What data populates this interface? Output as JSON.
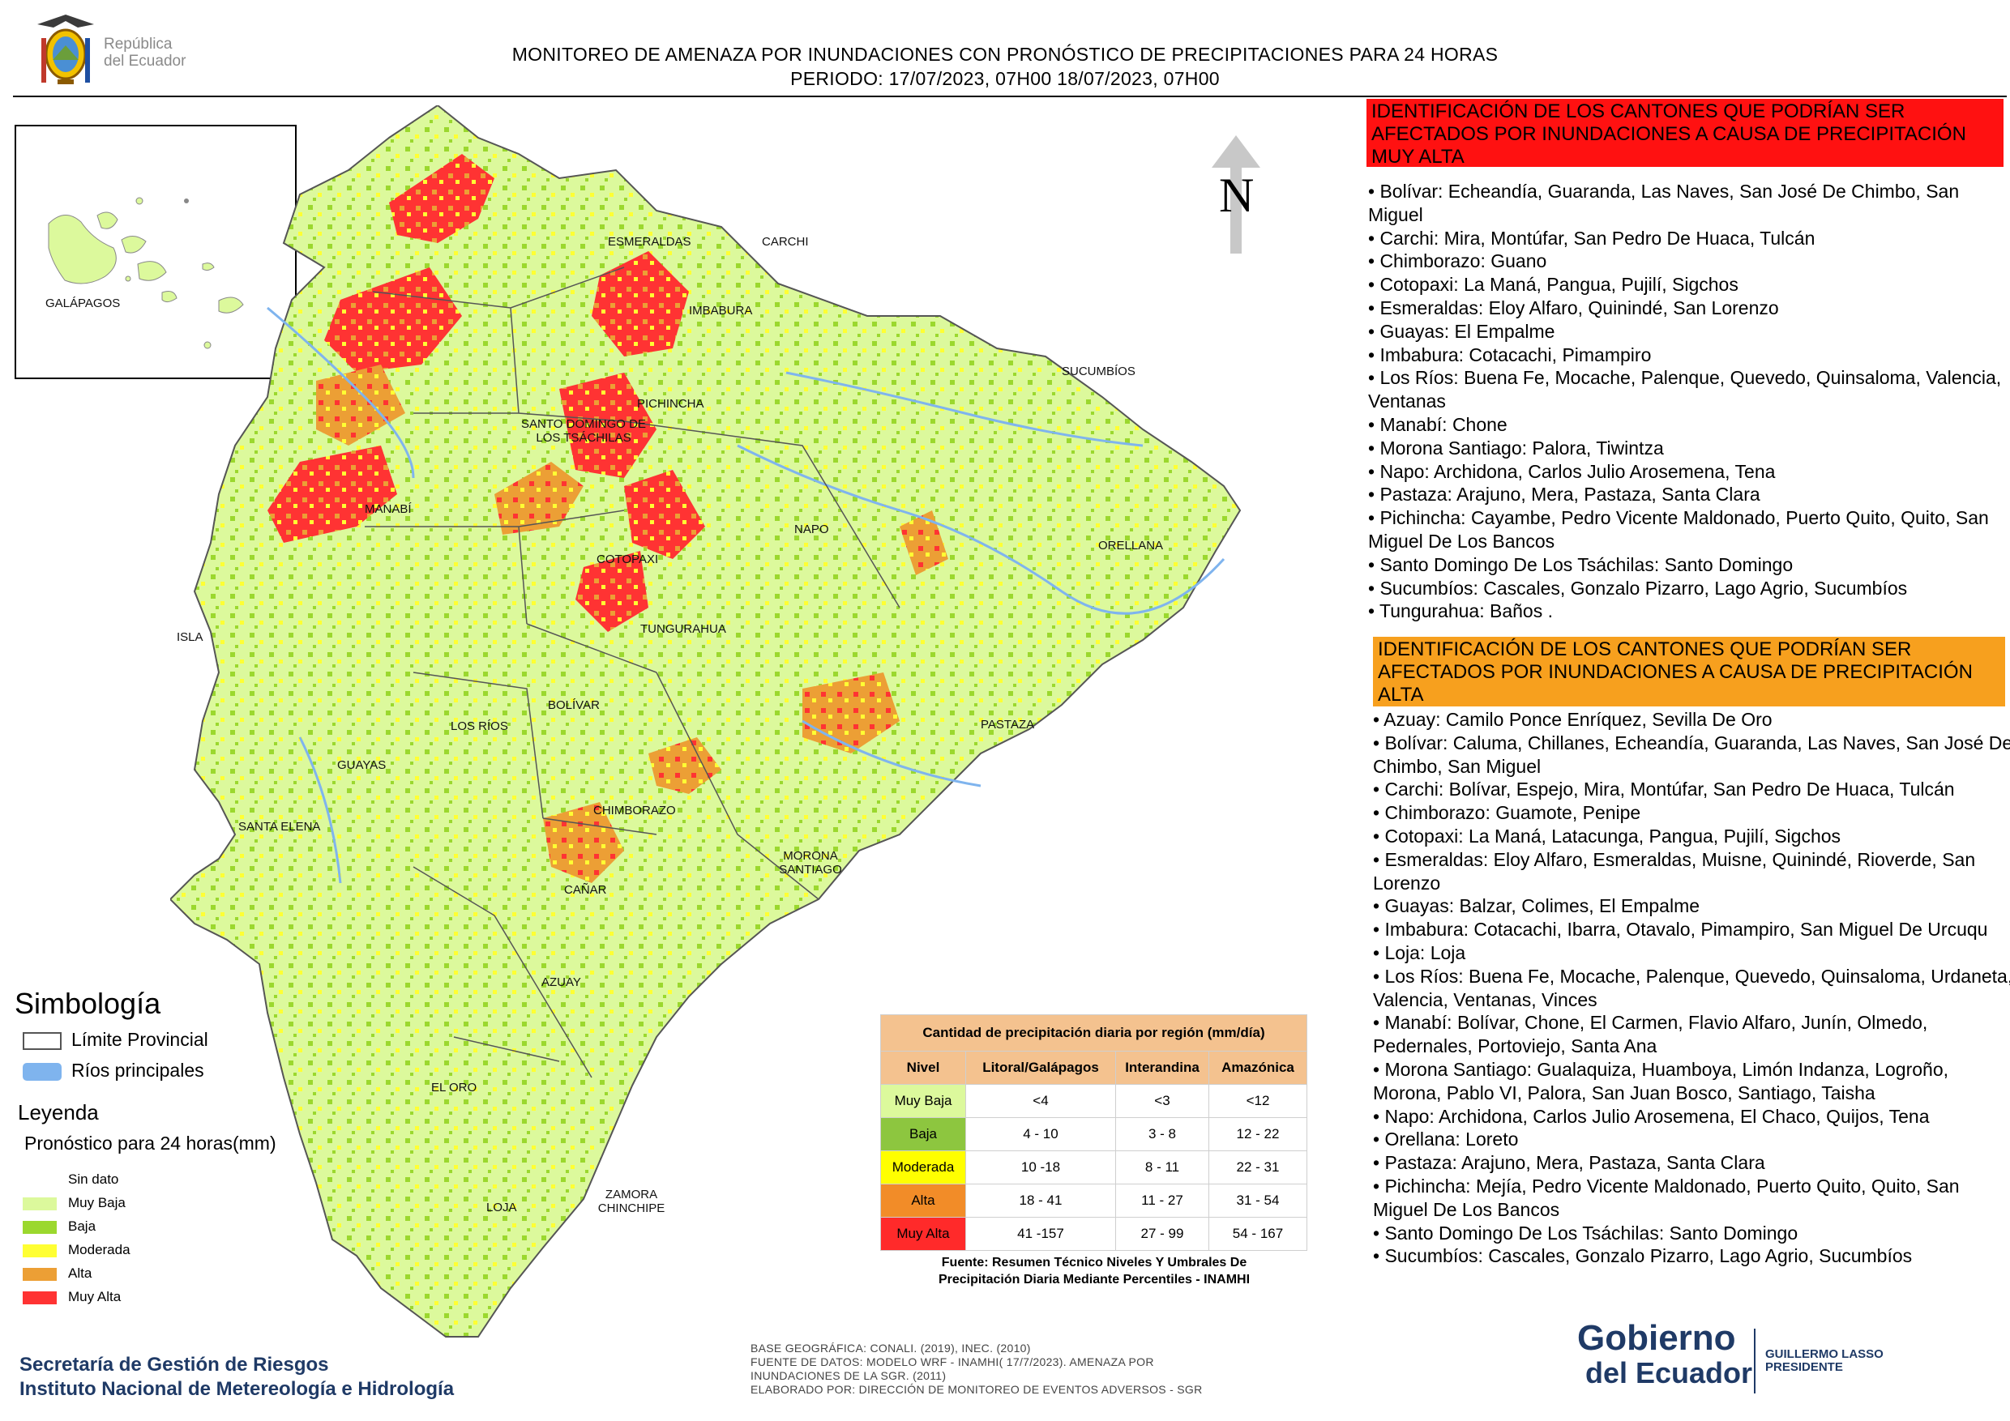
{
  "header": {
    "line1": "MONITOREO DE AMENAZA POR INUNDACIONES  CON PRONÓSTICO DE  PRECIPITACIONES PARA 24 HORAS",
    "line2": "PERIODO: 17/07/2023, 07H00 18/07/2023, 07H00",
    "logo_line1": "República",
    "logo_line2": "del Ecuador"
  },
  "map": {
    "north": "N",
    "inset_label": "GALÁPAGOS",
    "provinces": [
      "ESMERALDAS",
      "CARCHI",
      "IMBABURA",
      "SUCUMBÍOS",
      "PICHINCHA",
      "SANTO DOMINGO DE LOS TSÁCHILAS",
      "MANABÍ",
      "NAPO",
      "ORELLANA",
      "COTOPAXI",
      "TUNGURAHUA",
      "ISLA",
      "BOLÍVAR",
      "LOS RÍOS",
      "GUAYAS",
      "PASTAZA",
      "CHIMBORAZO",
      "SANTA ELENA",
      "MORONA SANTIAGO",
      "CAÑAR",
      "AZUAY",
      "EL ORO",
      "LOJA",
      "ZAMORA CHINCHIPE"
    ],
    "colors": {
      "muy_baja": "#dcf99c",
      "baja": "#9bd82e",
      "moderada": "#ffff33",
      "alta": "#ec9f35",
      "muy_alta": "#ff3333",
      "rivers": "#7fb4ee"
    }
  },
  "panel_high": {
    "title": "IDENTIFICACIÓN DE LOS CANTONES QUE PODRÍAN SER AFECTADOS POR INUNDACIONES  A CAUSA DE PRECIPITACIÓN MUY ALTA",
    "items": [
      "• Bolívar: Echeandía, Guaranda, Las Naves, San José De Chimbo, San Miguel",
      "• Carchi: Mira, Montúfar, San Pedro De Huaca, Tulcán",
      "• Chimborazo: Guano",
      "• Cotopaxi: La Maná, Pangua, Pujilí, Sigchos",
      "• Esmeraldas: Eloy Alfaro, Quinindé, San Lorenzo",
      "• Guayas: El Empalme",
      "• Imbabura: Cotacachi, Pimampiro",
      "• Los Ríos: Buena Fe, Mocache, Palenque, Quevedo, Quinsaloma, Valencia, Ventanas",
      "• Manabí: Chone",
      "• Morona Santiago: Palora, Tiwintza",
      "• Napo: Archidona, Carlos Julio Arosemena, Tena",
      "• Pastaza: Arajuno, Mera, Pastaza, Santa Clara",
      "• Pichincha: Cayambe, Pedro Vicente Maldonado, Puerto Quito, Quito, San Miguel De Los Bancos",
      "• Santo Domingo De Los Tsáchilas: Santo Domingo",
      "• Sucumbíos: Cascales, Gonzalo Pizarro, Lago Agrio, Sucumbíos",
      "• Tungurahua: Baños ."
    ]
  },
  "panel_alta": {
    "title": "IDENTIFICACIÓN DE LOS CANTONES QUE  PODRÍAN SER AFECTADOS POR INUNDACIONES  A CAUSA DE PRECIPITACIÓN ALTA",
    "items": [
      "• Azuay: Camilo Ponce Enríquez, Sevilla De Oro",
      "• Bolívar: Caluma, Chillanes, Echeandía, Guaranda, Las Naves, San José De Chimbo, San Miguel",
      "• Carchi: Bolívar, Espejo, Mira, Montúfar, San Pedro De Huaca, Tulcán",
      "• Chimborazo: Guamote, Penipe",
      "• Cotopaxi: La Maná, Latacunga, Pangua, Pujilí, Sigchos",
      "• Esmeraldas: Eloy Alfaro, Esmeraldas, Muisne, Quinindé, Rioverde, San Lorenzo",
      "• Guayas: Balzar, Colimes, El Empalme",
      "• Imbabura: Cotacachi, Ibarra, Otavalo, Pimampiro, San Miguel De Urcuqu",
      "• Loja: Loja",
      "• Los Ríos: Buena Fe, Mocache, Palenque, Quevedo, Quinsaloma, Urdaneta, Valencia, Ventanas, Vinces",
      "• Manabí: Bolívar, Chone, El Carmen, Flavio Alfaro, Junín, Olmedo, Pedernales, Portoviejo, Santa Ana",
      "• Morona Santiago: Gualaquiza, Huamboya, Limón Indanza, Logroño, Morona, Pablo VI, Palora, San Juan Bosco, Santiago, Taisha",
      "• Napo: Archidona, Carlos Julio Arosemena, El Chaco, Quijos, Tena",
      "• Orellana: Loreto",
      "• Pastaza: Arajuno, Mera, Pastaza, Santa Clara",
      "• Pichincha: Mejía, Pedro Vicente Maldonado, Puerto Quito, Quito, San Miguel De Los Bancos",
      "• Santo Domingo De Los Tsáchilas: Santo Domingo",
      "• Sucumbíos: Cascales, Gonzalo Pizarro, Lago Agrio, Sucumbíos"
    ]
  },
  "legend": {
    "simbologia": "Simbología",
    "limite": "Límite Provincial",
    "rios": "Ríos principales",
    "leyenda": "Leyenda",
    "pronostico": "Pronóstico para 24 horas(mm)",
    "items": [
      {
        "label": "Sin dato",
        "color": "#ffffff"
      },
      {
        "label": "Muy Baja",
        "color": "#dcf99c"
      },
      {
        "label": "Baja",
        "color": "#9bd82e"
      },
      {
        "label": "Moderada",
        "color": "#ffff33"
      },
      {
        "label": "Alta",
        "color": "#ec9f35"
      },
      {
        "label": "Muy Alta",
        "color": "#ff3333"
      }
    ]
  },
  "table": {
    "title": "Cantidad de precipitación diaria por región (mm/día)",
    "headers": [
      "Nivel",
      "Litoral/Galápagos",
      "Interandina",
      "Amazónica"
    ],
    "rows": [
      {
        "nivel": "Muy Baja",
        "color": "#dcf99c",
        "v": [
          "<4",
          "<3",
          "<12"
        ]
      },
      {
        "nivel": "Baja",
        "color": "#8dc63f",
        "v": [
          "4 - 10",
          "3 - 8",
          "12 - 22"
        ]
      },
      {
        "nivel": "Moderada",
        "color": "#ffff00",
        "v": [
          "10 -18",
          "8 - 11",
          "22 - 31"
        ]
      },
      {
        "nivel": "Alta",
        "color": "#f28c28",
        "v": [
          "18 - 41",
          "11 - 27",
          "31 - 54"
        ]
      },
      {
        "nivel": "Muy Alta",
        "color": "#ff2a2a",
        "v": [
          "41 -157",
          "27 - 99",
          "54 - 167"
        ]
      }
    ],
    "source_line1": "Fuente: Resumen Técnico Niveles Y Umbrales De",
    "source_line2": "Precipitación Diaria Mediante Percentiles - INAMHI"
  },
  "footer": {
    "left1": "Secretaría de Gestión de Riesgos",
    "left2": "Instituto Nacional de Metereología e Hidrología",
    "base1": "BASE GEOGRÁFICA: CONALI. (2019), INEC. (2010)",
    "base2": "FUENTE DE DATOS: MODELO WRF - INAMHI( 17/7/2023).  AMENAZA POR",
    "base3": "INUNDACIONES DE LA SGR. (2011)",
    "base4": "ELABORADO POR: DIRECCIÓN DE MONITOREO DE EVENTOS ADVERSOS - SGR",
    "gob1": "Gobierno",
    "gob2": "del Ecuador",
    "pres1": "GUILLERMO LASSO",
    "pres2": "PRESIDENTE"
  }
}
